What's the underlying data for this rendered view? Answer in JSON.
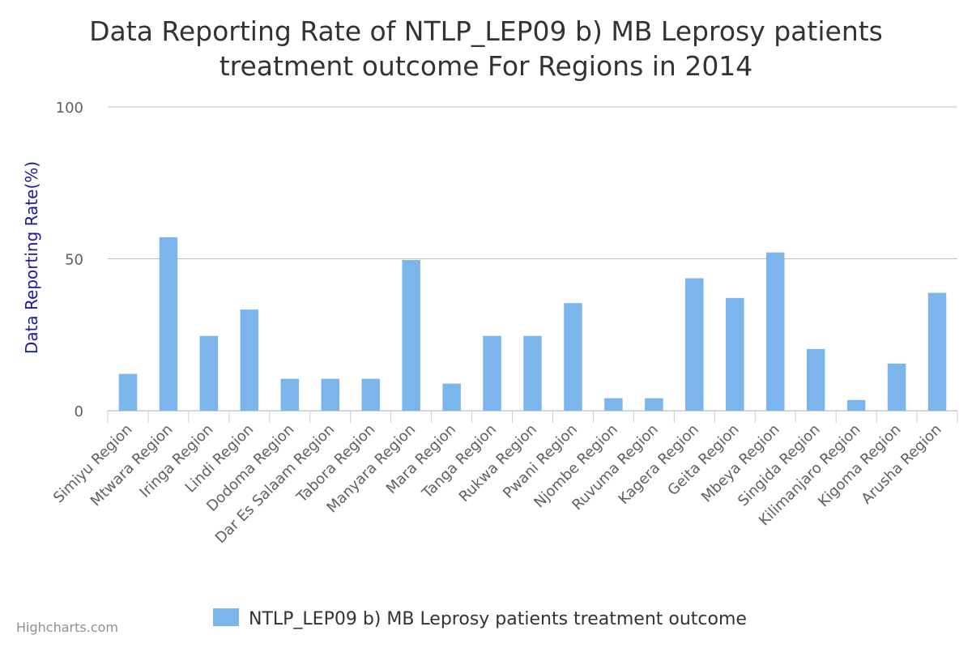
{
  "chart_data": {
    "type": "bar",
    "title_lines": [
      "Data Reporting Rate of NTLP_LEP09 b) MB Leprosy patients",
      "treatment outcome For Regions in 2014"
    ],
    "ylabel": "Data Reporting Rate(%)",
    "xlabel": "",
    "ylim": [
      0,
      100
    ],
    "yticks": [
      0,
      50,
      100
    ],
    "grid": true,
    "categories": [
      "Simiyu Region",
      "Mtwara Region",
      "Iringa Region",
      "Lindi Region",
      "Dodoma Region",
      "Dar Es Salaam Region",
      "Tabora Region",
      "Manyara Region",
      "Mara Region",
      "Tanga Region",
      "Rukwa Region",
      "Pwani Region",
      "Njombe Region",
      "Ruvuma Region",
      "Kagera Region",
      "Geita Region",
      "Mbeya Region",
      "Singida Region",
      "Kilimanjaro Region",
      "Kigoma Region",
      "Arusha Region"
    ],
    "series": [
      {
        "name": "NTLP_LEP09 b) MB Leprosy patients treatment outcome",
        "color": "#7cb5ec",
        "values": [
          12.1,
          57.1,
          24.6,
          33.3,
          10.5,
          10.5,
          10.5,
          49.6,
          8.9,
          24.6,
          24.6,
          35.4,
          4.1,
          4.1,
          43.6,
          37.1,
          52.1,
          20.3,
          3.5,
          15.5,
          38.8
        ]
      }
    ],
    "legend_position": "bottom-center"
  },
  "credits": "Highcharts.com",
  "colors": {
    "bar": "#7cb5ec",
    "grid": "#c0c0c0",
    "axis": "#c0d0e0"
  }
}
